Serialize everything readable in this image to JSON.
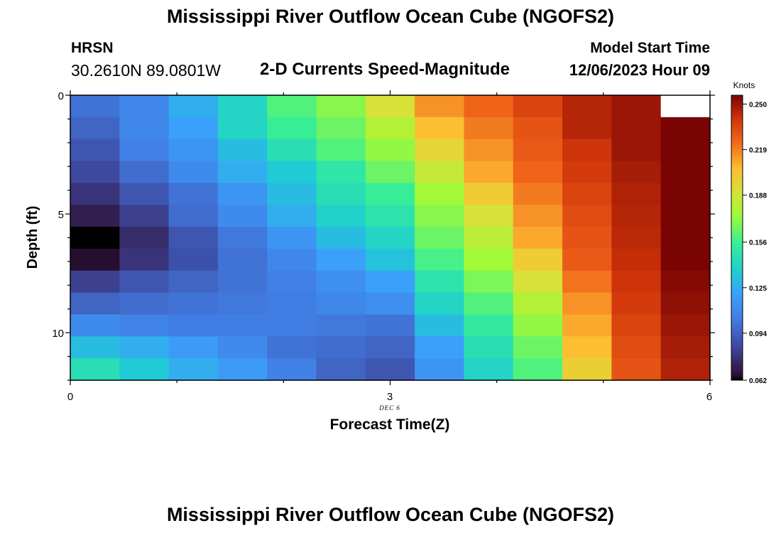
{
  "header": {
    "title": "Mississippi River Outflow Ocean Cube (NGOFS2)",
    "station": "HRSN",
    "coords": "30.2610N  89.0801W",
    "subtitle": "2-D Currents Speed-Magnitude",
    "model_start_label": "Model Start Time",
    "model_start_value": "12/06/2023 Hour 09"
  },
  "footer": {
    "title": "Mississippi River Outflow Ocean Cube (NGOFS2)"
  },
  "chart_data": {
    "type": "heatmap",
    "xlabel": "Forecast Time(Z)",
    "ylabel": "Depth (ft)",
    "x_date_label": "DEC 6",
    "xlim": [
      0,
      6
    ],
    "ylim": [
      0,
      12
    ],
    "x_ticks": [
      "0",
      "3",
      "6"
    ],
    "y_ticks": [
      "0",
      "5",
      "10"
    ],
    "x": [
      0,
      0.5,
      1,
      1.5,
      2,
      2.5,
      3,
      3.5,
      4,
      4.5,
      5,
      5.5,
      6
    ],
    "depths": [
      0,
      1,
      2,
      3,
      4,
      5,
      6,
      7,
      8,
      9,
      10,
      11,
      12
    ],
    "colorbar": {
      "label": "Knots",
      "ticks": [
        "0.250",
        "0.219",
        "0.188",
        "0.156",
        "0.125",
        "0.094",
        "0.062"
      ],
      "min": 0.062,
      "max": 0.256
    },
    "values": [
      [
        0.1,
        0.108,
        0.125,
        0.14,
        0.16,
        0.17,
        0.19,
        0.215,
        0.225,
        0.235,
        0.245,
        0.25,
        null
      ],
      [
        0.095,
        0.108,
        0.12,
        0.14,
        0.155,
        0.165,
        0.18,
        0.205,
        0.22,
        0.23,
        0.245,
        0.25,
        0.256
      ],
      [
        0.09,
        0.105,
        0.115,
        0.13,
        0.145,
        0.16,
        0.172,
        0.195,
        0.215,
        0.228,
        0.24,
        0.25,
        0.256
      ],
      [
        0.085,
        0.098,
        0.11,
        0.125,
        0.135,
        0.15,
        0.165,
        0.185,
        0.21,
        0.225,
        0.238,
        0.248,
        0.256
      ],
      [
        0.078,
        0.09,
        0.1,
        0.115,
        0.13,
        0.145,
        0.155,
        0.175,
        0.2,
        0.22,
        0.235,
        0.246,
        0.256
      ],
      [
        0.07,
        0.082,
        0.098,
        0.11,
        0.125,
        0.138,
        0.148,
        0.17,
        0.19,
        0.215,
        0.232,
        0.245,
        0.256
      ],
      [
        0.062,
        0.075,
        0.09,
        0.102,
        0.115,
        0.13,
        0.14,
        0.165,
        0.182,
        0.21,
        0.23,
        0.244,
        0.256
      ],
      [
        0.065,
        0.078,
        0.088,
        0.1,
        0.108,
        0.12,
        0.132,
        0.158,
        0.175,
        0.2,
        0.228,
        0.242,
        0.256
      ],
      [
        0.082,
        0.09,
        0.095,
        0.1,
        0.105,
        0.112,
        0.12,
        0.148,
        0.168,
        0.19,
        0.222,
        0.24,
        0.254
      ],
      [
        0.095,
        0.098,
        0.1,
        0.102,
        0.104,
        0.108,
        0.112,
        0.14,
        0.16,
        0.18,
        0.215,
        0.238,
        0.252
      ],
      [
        0.11,
        0.106,
        0.104,
        0.104,
        0.104,
        0.102,
        0.1,
        0.13,
        0.152,
        0.172,
        0.21,
        0.235,
        0.25
      ],
      [
        0.13,
        0.125,
        0.118,
        0.11,
        0.1,
        0.098,
        0.095,
        0.12,
        0.145,
        0.165,
        0.205,
        0.232,
        0.248
      ],
      [
        0.145,
        0.135,
        0.125,
        0.118,
        0.105,
        0.095,
        0.09,
        0.115,
        0.14,
        0.16,
        0.198,
        0.23,
        0.246
      ]
    ]
  }
}
